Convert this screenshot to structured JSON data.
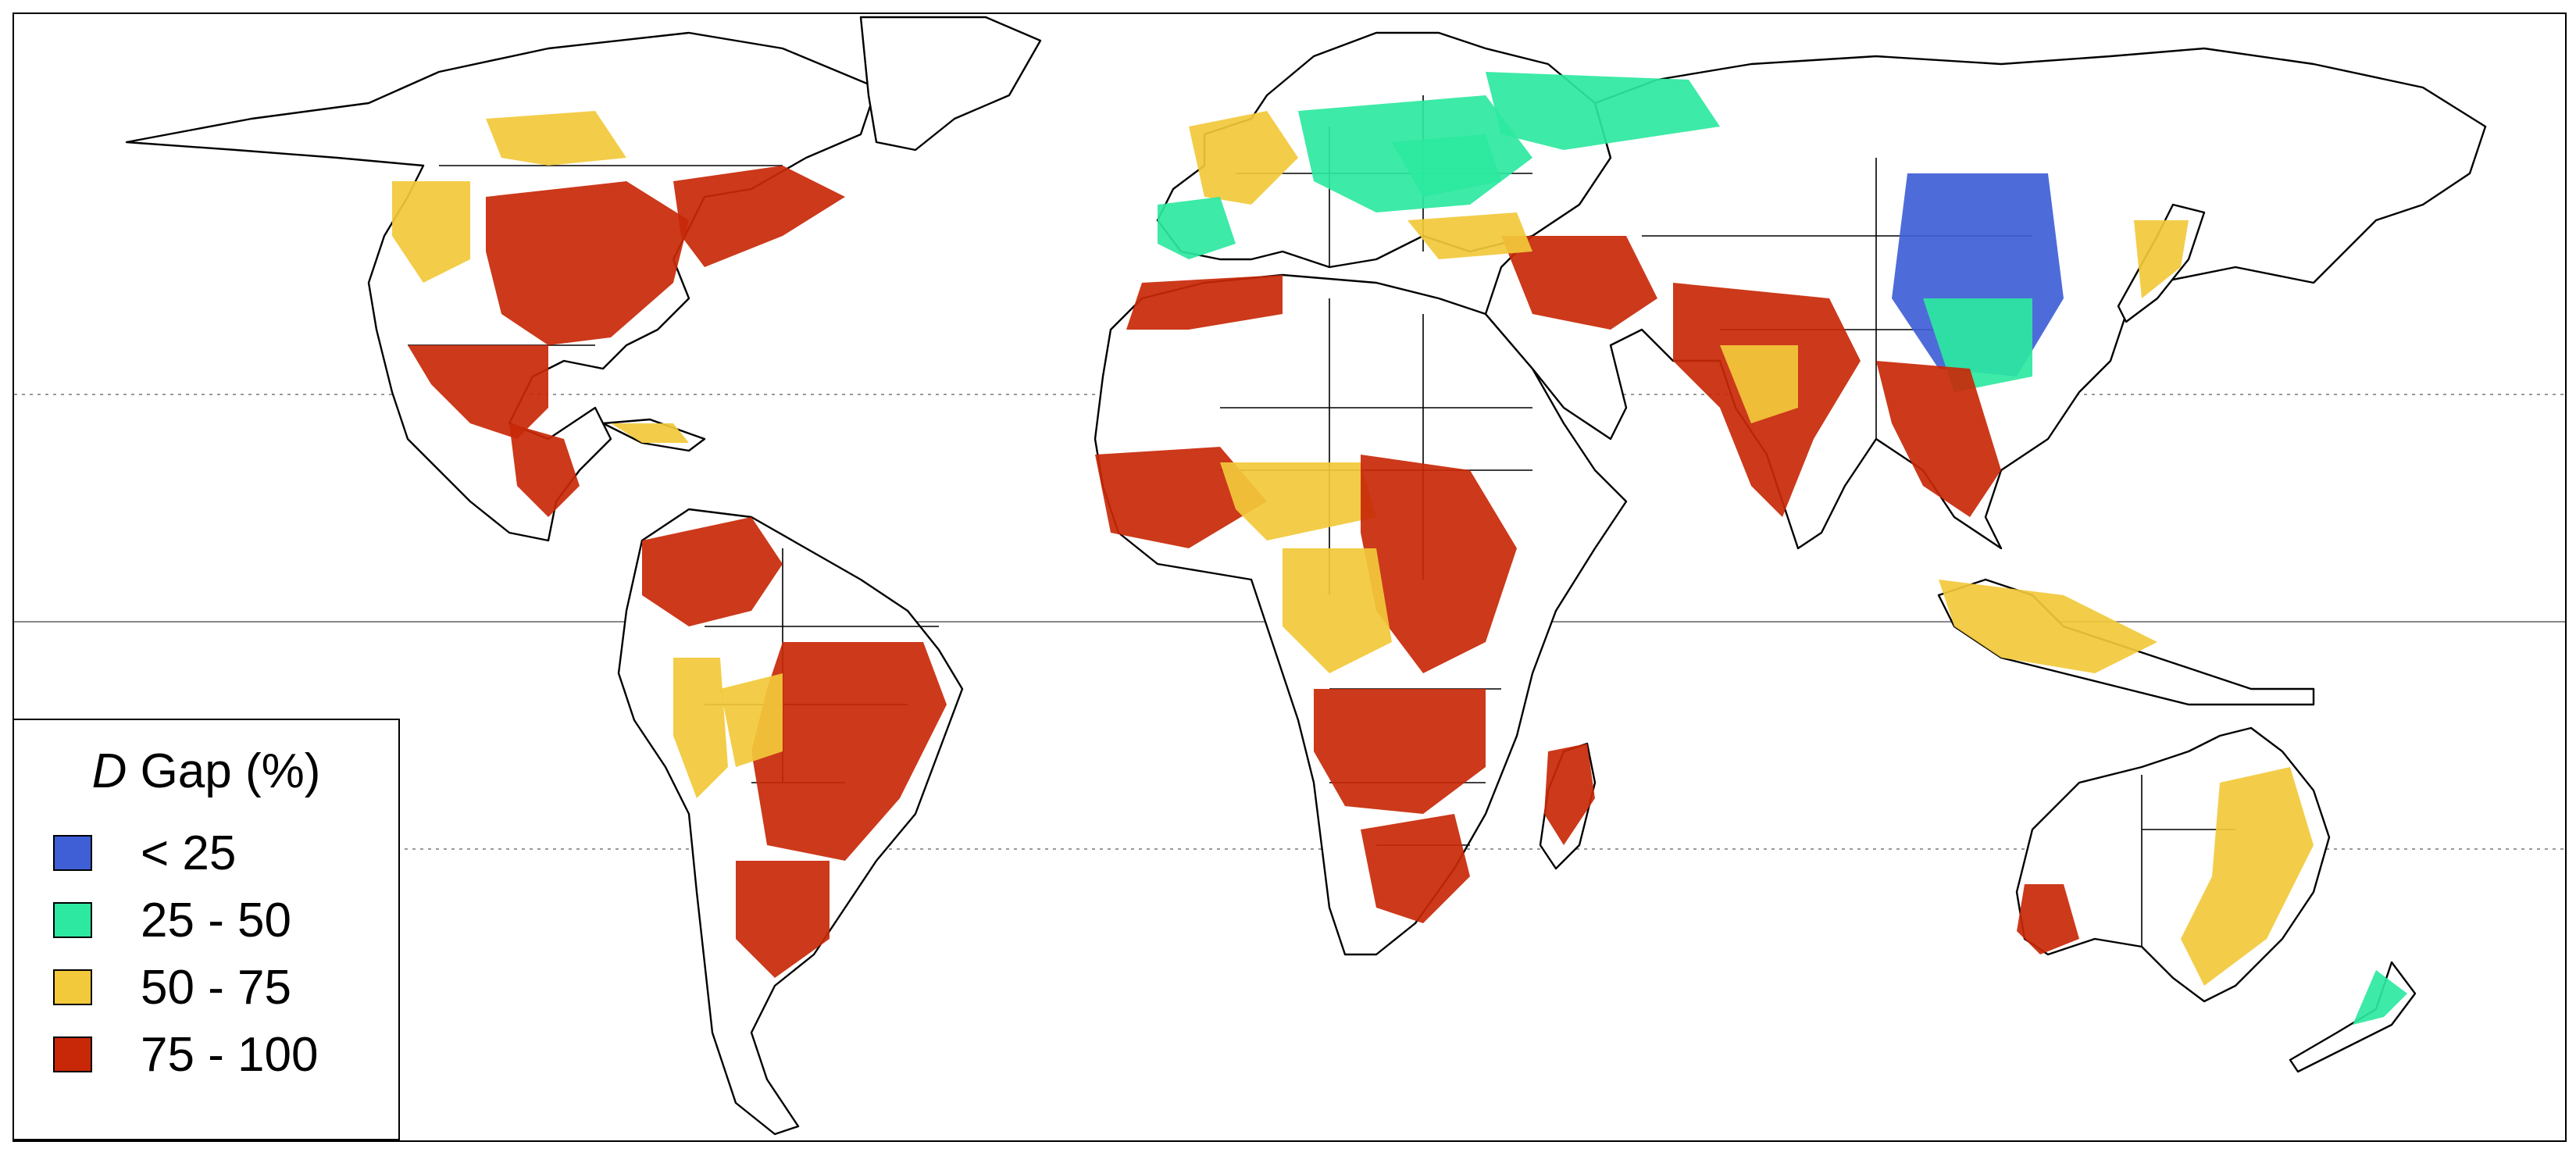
{
  "legend": {
    "title_var": "D",
    "title_rest": " Gap (%)",
    "items": [
      {
        "label": "< 25",
        "color": "#3f5fd6"
      },
      {
        "label": "25 - 50",
        "color": "#2de8a0"
      },
      {
        "label": "50 - 75",
        "color": "#f2c93a"
      },
      {
        "label": "75 - 100",
        "color": "#c82808"
      }
    ]
  },
  "map": {
    "projection": "equirectangular",
    "reference_lines": [
      "tropic-of-cancer",
      "equator",
      "tropic-of-capricorn"
    ],
    "background_color": "#ffffff",
    "land_outline_color": "#000000",
    "gap_patches": [
      {
        "region": "north-america-central-plains",
        "class": 3
      },
      {
        "region": "north-america-east",
        "class": 3
      },
      {
        "region": "canada-prairies",
        "class": 2
      },
      {
        "region": "north-america-west",
        "class": 2
      },
      {
        "region": "mexico",
        "class": 3
      },
      {
        "region": "central-america",
        "class": 3
      },
      {
        "region": "cuba",
        "class": 2
      },
      {
        "region": "south-america-northwest",
        "class": 3
      },
      {
        "region": "brazil-east",
        "class": 3
      },
      {
        "region": "pampas",
        "class": 3
      },
      {
        "region": "andes",
        "class": 2
      },
      {
        "region": "amazon-south",
        "class": 2
      },
      {
        "region": "western-europe",
        "class": 2
      },
      {
        "region": "iberia",
        "class": 1
      },
      {
        "region": "eastern-europe",
        "class": 1
      },
      {
        "region": "russia-steppe",
        "class": 1
      },
      {
        "region": "north-africa",
        "class": 3
      },
      {
        "region": "sahel-west",
        "class": 3
      },
      {
        "region": "sahel",
        "class": 2
      },
      {
        "region": "east-africa",
        "class": 3
      },
      {
        "region": "central-africa",
        "class": 2
      },
      {
        "region": "southern-africa",
        "class": 3
      },
      {
        "region": "south-africa",
        "class": 3
      },
      {
        "region": "madagascar",
        "class": 3
      },
      {
        "region": "middle-east",
        "class": 3
      },
      {
        "region": "india",
        "class": 3
      },
      {
        "region": "india-central",
        "class": 2
      },
      {
        "region": "china-east",
        "class": 0
      },
      {
        "region": "china-south",
        "class": 1
      },
      {
        "region": "southeast-asia",
        "class": 3
      },
      {
        "region": "indonesia",
        "class": 2
      },
      {
        "region": "japan",
        "class": 2
      },
      {
        "region": "australia-east",
        "class": 2
      },
      {
        "region": "australia-southwest",
        "class": 3
      },
      {
        "region": "new-zealand",
        "class": 1
      },
      {
        "region": "ukraine",
        "class": 1
      },
      {
        "region": "turkey",
        "class": 2
      }
    ]
  }
}
